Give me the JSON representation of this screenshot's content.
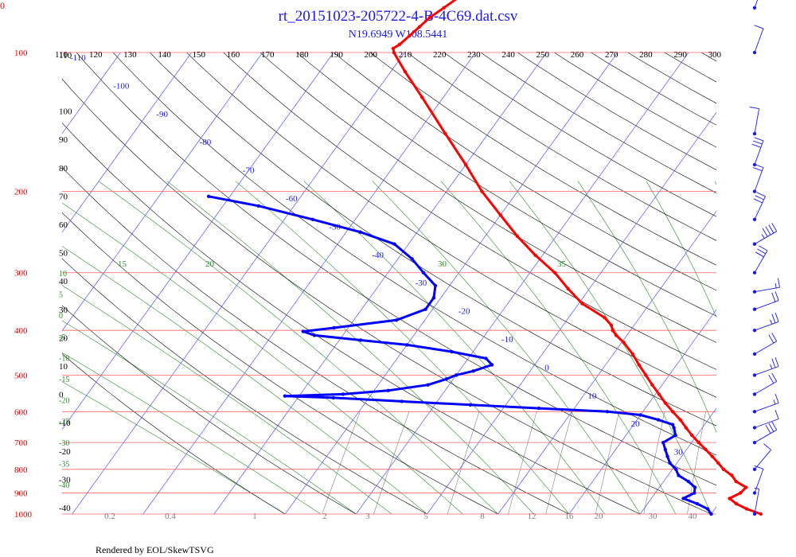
{
  "chart_data": {
    "type": "scatter",
    "title": "rt_20151023-205722-4-B-4C69.dat.csv",
    "subtitle": "N19.6949 W108.5441",
    "corner_label": "0",
    "footer": "Rendered by EOL/SkewTSVG",
    "pressure_levels": [
      100,
      200,
      300,
      400,
      500,
      600,
      700,
      800,
      900,
      1000
    ],
    "top_ticks": [
      110,
      120,
      130,
      140,
      150,
      160,
      170,
      180,
      190,
      200,
      210,
      220,
      230,
      240,
      250,
      260,
      270,
      280,
      290,
      300
    ],
    "isotherm_labels": [
      -110,
      -100,
      -90,
      -80,
      -70,
      -60,
      -50,
      -40,
      -30,
      -20,
      -10,
      0,
      10,
      20,
      30
    ],
    "dry_adiabat_labels": [
      110,
      100,
      90,
      80,
      70,
      60,
      50,
      40,
      30,
      20,
      10,
      0,
      -10,
      -20,
      -30,
      -40
    ],
    "moist_adiabat_labels": [
      10,
      5,
      0,
      -5,
      -10,
      -15,
      -20,
      -25,
      -30,
      -35,
      -40
    ],
    "theta_e_labels": [
      15,
      20,
      30,
      35
    ],
    "mixing_ratio_labels": [
      "0.2",
      "0.4",
      "1",
      "2",
      "3",
      "5",
      "8",
      "12",
      "16",
      "20",
      "30",
      "40"
    ],
    "colors": {
      "temperature": "#ff0000",
      "dewpoint": "#0000ff",
      "isobar": "#ff6060",
      "isotherm": "#5050ff",
      "dry_adiabat": "#000000",
      "moist_adiabat": "#2e8b2e",
      "mixing_ratio": "#808080",
      "title": "#1a1aee"
    },
    "series": [
      {
        "name": "temperature",
        "points": [
          [
            1000,
            27.0
          ],
          [
            975,
            24.5
          ],
          [
            950,
            22.5
          ],
          [
            925,
            21.0
          ],
          [
            900,
            22.0
          ],
          [
            875,
            22.2
          ],
          [
            850,
            20.2
          ],
          [
            825,
            19.0
          ],
          [
            800,
            17.2
          ],
          [
            775,
            15.8
          ],
          [
            750,
            14.3
          ],
          [
            725,
            12.7
          ],
          [
            700,
            11.0
          ],
          [
            675,
            9.3
          ],
          [
            650,
            7.7
          ],
          [
            625,
            6.1
          ],
          [
            600,
            4.2
          ],
          [
            575,
            2.3
          ],
          [
            550,
            0.5
          ],
          [
            525,
            -1.4
          ],
          [
            500,
            -3.3
          ],
          [
            475,
            -5.3
          ],
          [
            450,
            -7.3
          ],
          [
            425,
            -9.7
          ],
          [
            410,
            -11.5
          ],
          [
            400,
            -12.5
          ],
          [
            390,
            -13.2
          ],
          [
            375,
            -15.0
          ],
          [
            350,
            -19.5
          ],
          [
            325,
            -23.0
          ],
          [
            300,
            -26.5
          ],
          [
            275,
            -31.0
          ],
          [
            250,
            -35.5
          ],
          [
            225,
            -40.0
          ],
          [
            200,
            -45.0
          ],
          [
            175,
            -50.0
          ],
          [
            150,
            -56.0
          ],
          [
            125,
            -63.0
          ],
          [
            110,
            -68.0
          ],
          [
            100,
            -71.5
          ],
          [
            98,
            -72.0
          ],
          [
            96,
            -71.5
          ],
          [
            92,
            -71.0
          ],
          [
            88,
            -70.5
          ],
          [
            84,
            -70.0
          ],
          [
            80,
            -69.0
          ],
          [
            76,
            -68.0
          ],
          [
            72,
            -66.5
          ],
          [
            68,
            -65.5
          ]
        ]
      },
      {
        "name": "dewpoint",
        "points": [
          [
            1000,
            20.0
          ],
          [
            975,
            19.0
          ],
          [
            950,
            17.0
          ],
          [
            925,
            14.5
          ],
          [
            900,
            15.5
          ],
          [
            875,
            15.0
          ],
          [
            850,
            13.5
          ],
          [
            825,
            11.5
          ],
          [
            800,
            10.5
          ],
          [
            775,
            9.0
          ],
          [
            750,
            8.0
          ],
          [
            725,
            7.0
          ],
          [
            700,
            6.0
          ],
          [
            675,
            7.0
          ],
          [
            650,
            6.0
          ],
          [
            640,
            5.5
          ],
          [
            625,
            3.0
          ],
          [
            610,
            0.0
          ],
          [
            600,
            -5.0
          ],
          [
            590,
            -15.0
          ],
          [
            580,
            -25.0
          ],
          [
            570,
            -35.0
          ],
          [
            560,
            -45.0
          ],
          [
            555,
            -52.0
          ],
          [
            550,
            -44.0
          ],
          [
            540,
            -38.0
          ],
          [
            525,
            -33.0
          ],
          [
            510,
            -31.0
          ],
          [
            500,
            -30.0
          ],
          [
            490,
            -28.0
          ],
          [
            475,
            -26.0
          ],
          [
            460,
            -27.5
          ],
          [
            445,
            -33.0
          ],
          [
            430,
            -40.0
          ],
          [
            420,
            -47.0
          ],
          [
            410,
            -54.0
          ],
          [
            402,
            -56.0
          ],
          [
            395,
            -52.0
          ],
          [
            380,
            -44.0
          ],
          [
            360,
            -41.0
          ],
          [
            340,
            -41.0
          ],
          [
            320,
            -42.0
          ],
          [
            300,
            -45.0
          ],
          [
            280,
            -48.0
          ],
          [
            260,
            -52.0
          ],
          [
            245,
            -58.0
          ],
          [
            230,
            -66.0
          ],
          [
            215,
            -75.0
          ],
          [
            205,
            -83.0
          ]
        ]
      }
    ],
    "wind_barbs": [
      {
        "pressure": 80,
        "direction": 200,
        "speed": 25
      },
      {
        "pressure": 100,
        "direction": 200,
        "speed": 10
      },
      {
        "pressure": 150,
        "direction": 190,
        "speed": 10
      },
      {
        "pressure": 175,
        "direction": 200,
        "speed": 30
      },
      {
        "pressure": 200,
        "direction": 200,
        "speed": 20
      },
      {
        "pressure": 230,
        "direction": 205,
        "speed": 30
      },
      {
        "pressure": 260,
        "direction": 240,
        "speed": 45
      },
      {
        "pressure": 300,
        "direction": 210,
        "speed": 30
      },
      {
        "pressure": 330,
        "direction": 260,
        "speed": 15
      },
      {
        "pressure": 360,
        "direction": 250,
        "speed": 20
      },
      {
        "pressure": 400,
        "direction": 250,
        "speed": 25
      },
      {
        "pressure": 450,
        "direction": 240,
        "speed": 20
      },
      {
        "pressure": 500,
        "direction": 250,
        "speed": 25
      },
      {
        "pressure": 550,
        "direction": 240,
        "speed": 20
      },
      {
        "pressure": 600,
        "direction": 250,
        "speed": 15
      },
      {
        "pressure": 650,
        "direction": 250,
        "speed": 10
      },
      {
        "pressure": 700,
        "direction": 240,
        "speed": 30
      },
      {
        "pressure": 800,
        "direction": 220,
        "speed": 10
      },
      {
        "pressure": 900,
        "direction": 200,
        "speed": 10
      },
      {
        "pressure": 1000,
        "direction": 190,
        "speed": 5
      }
    ]
  }
}
